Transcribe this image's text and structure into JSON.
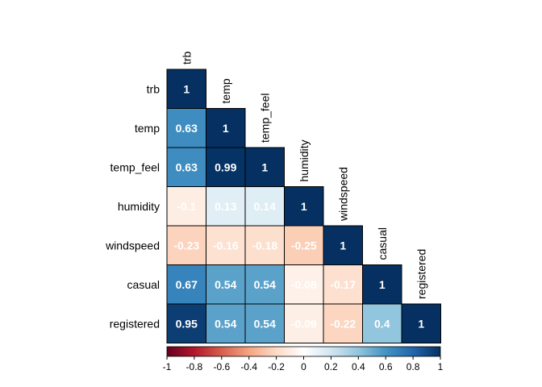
{
  "chart_data": {
    "type": "heatmap",
    "subtype": "correlation-matrix-lower-triangle",
    "variables": [
      "trb",
      "temp",
      "temp_feel",
      "humidity",
      "windspeed",
      "casual",
      "registered"
    ],
    "matrix": [
      [
        1,
        null,
        null,
        null,
        null,
        null,
        null
      ],
      [
        0.63,
        1,
        null,
        null,
        null,
        null,
        null
      ],
      [
        0.63,
        0.99,
        1,
        null,
        null,
        null,
        null
      ],
      [
        -0.1,
        0.13,
        0.14,
        1,
        null,
        null,
        null
      ],
      [
        -0.23,
        -0.16,
        -0.18,
        -0.25,
        1,
        null,
        null
      ],
      [
        0.67,
        0.54,
        0.54,
        -0.08,
        -0.17,
        1,
        null
      ],
      [
        0.95,
        0.54,
        0.54,
        -0.09,
        -0.22,
        0.4,
        1
      ]
    ],
    "value_labels": [
      [
        "1"
      ],
      [
        "0.63",
        "1"
      ],
      [
        "0.63",
        "0.99",
        "1"
      ],
      [
        "-0.1",
        "0.13",
        "0.14",
        "1"
      ],
      [
        "-0.23",
        "-0.16",
        "-0.18",
        "-0.25",
        "1"
      ],
      [
        "0.67",
        "0.54",
        "0.54",
        "-0.08",
        "-0.17",
        "1"
      ],
      [
        "0.95",
        "0.54",
        "0.54",
        "-0.09",
        "-0.22",
        "0.4",
        "1"
      ]
    ],
    "color_range": [
      -1,
      1
    ],
    "colorbar": {
      "position": "bottom",
      "tick_values": [
        -1,
        -0.8,
        -0.6,
        -0.4,
        -0.2,
        0,
        0.2,
        0.4,
        0.6,
        0.8,
        1
      ],
      "tick_labels": [
        "-1",
        "-0.8",
        "-0.6",
        "-0.4",
        "-0.2",
        "0",
        "0.2",
        "0.4",
        "0.6",
        "0.8",
        "1"
      ]
    },
    "palette": [
      "#67001F",
      "#B2182B",
      "#D6604D",
      "#F4A582",
      "#FDDBC7",
      "#FFFFFF",
      "#D1E5F0",
      "#92C5DE",
      "#4393C3",
      "#2166AC",
      "#053061"
    ],
    "grid": true
  }
}
